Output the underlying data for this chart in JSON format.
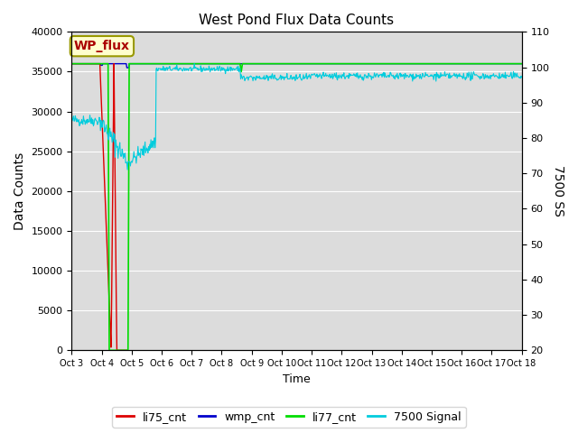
{
  "title": "West Pond Flux Data Counts",
  "xlabel": "Time",
  "ylabel_left": "Data Counts",
  "ylabel_right": "7500 SS",
  "ylim_left": [
    0,
    40000
  ],
  "ylim_right": [
    20,
    110
  ],
  "bg_color": "#dcdcdc",
  "annotation_text": "WP_flux",
  "annotation_box_color": "#ffffcc",
  "annotation_box_edge": "#999900",
  "annotation_text_color": "#aa0000",
  "xtick_labels": [
    "Oct 3",
    "Oct 4",
    "Oct 5",
    "Oct 6",
    "Oct 7",
    "Oct 8",
    "Oct 9",
    "Oct 10",
    "Oct 11",
    "Oct 12",
    "Oct 13",
    "Oct 14",
    "Oct 15",
    "Oct 16",
    "Oct 17",
    "Oct 18"
  ],
  "li75_color": "#dd0000",
  "wmp_color": "#0000cc",
  "li77_color": "#00dd00",
  "signal_color": "#00ccdd",
  "legend_labels": [
    "li75_cnt",
    "wmp_cnt",
    "li77_cnt",
    "7500 Signal"
  ],
  "legend_colors": [
    "#dd0000",
    "#0000cc",
    "#00dd00",
    "#00ccdd"
  ],
  "figsize": [
    6.4,
    4.8
  ],
  "dpi": 100
}
